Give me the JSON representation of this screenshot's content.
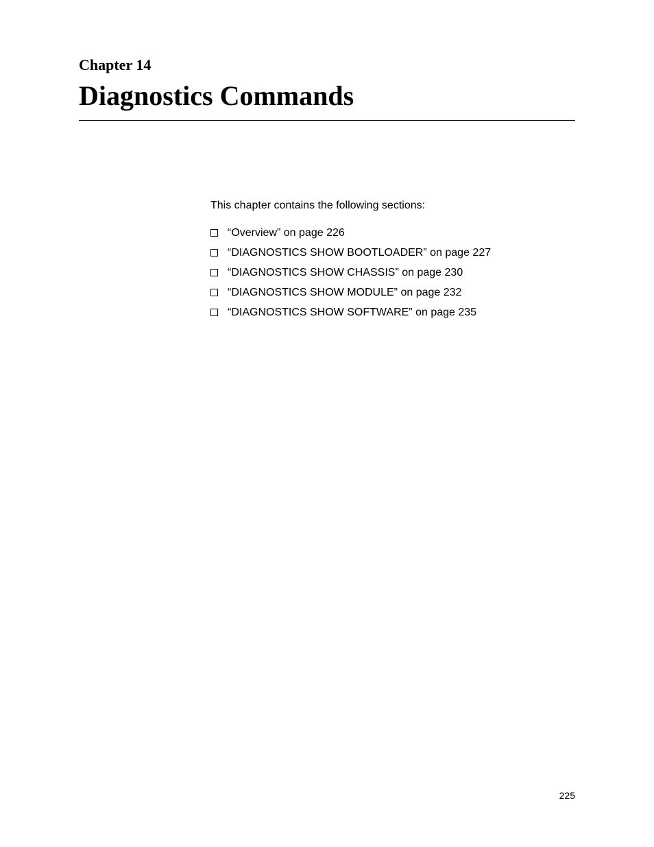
{
  "chapter": {
    "label": "Chapter 14",
    "title": "Diagnostics Commands"
  },
  "intro": "This chapter contains the following sections:",
  "sections": [
    {
      "text": "“Overview” on page 226"
    },
    {
      "text": "“DIAGNOSTICS SHOW BOOTLOADER” on page 227"
    },
    {
      "text": "“DIAGNOSTICS SHOW CHASSIS” on page 230"
    },
    {
      "text": "“DIAGNOSTICS SHOW MODULE” on page 232"
    },
    {
      "text": "“DIAGNOSTICS SHOW SOFTWARE” on page 235"
    }
  ],
  "page_number": "225",
  "colors": {
    "background": "#ffffff",
    "text": "#000000",
    "rule": "#000000"
  },
  "typography": {
    "chapter_label_fontsize": 22,
    "chapter_title_fontsize": 40,
    "body_fontsize": 16,
    "page_number_fontsize": 14,
    "serif_family": "Times New Roman",
    "sans_family": "Arial"
  }
}
